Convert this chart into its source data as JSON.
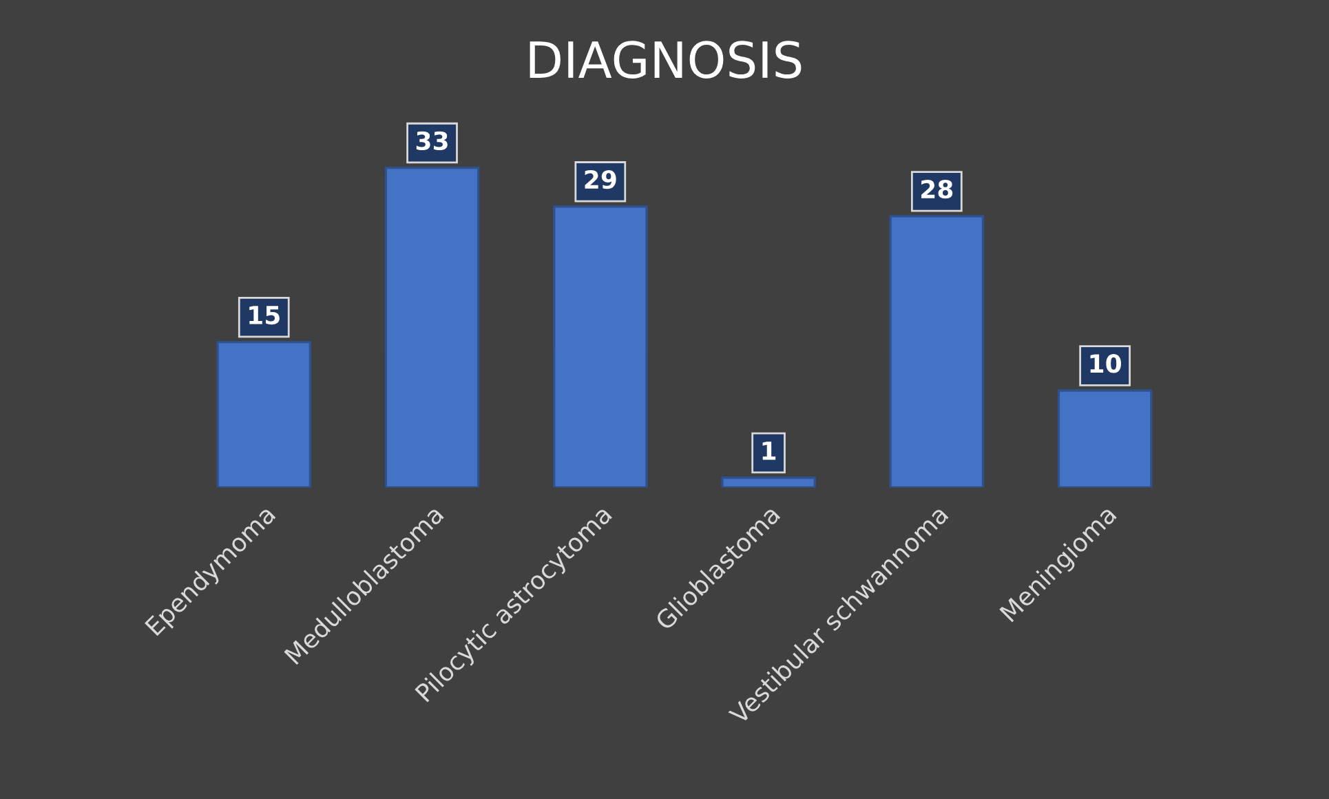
{
  "chart_data": {
    "type": "bar",
    "title": "DIAGNOSIS",
    "categories": [
      "Ependymoma",
      "Medulloblastoma",
      "Pilocytic astrocytoma",
      "Glioblastoma",
      "Vestibular schwannoma",
      "Meningioma"
    ],
    "values": [
      15,
      33,
      29,
      1,
      28,
      10
    ],
    "color": "#4472c4",
    "data_labels": true,
    "grid": false,
    "legend": false
  }
}
